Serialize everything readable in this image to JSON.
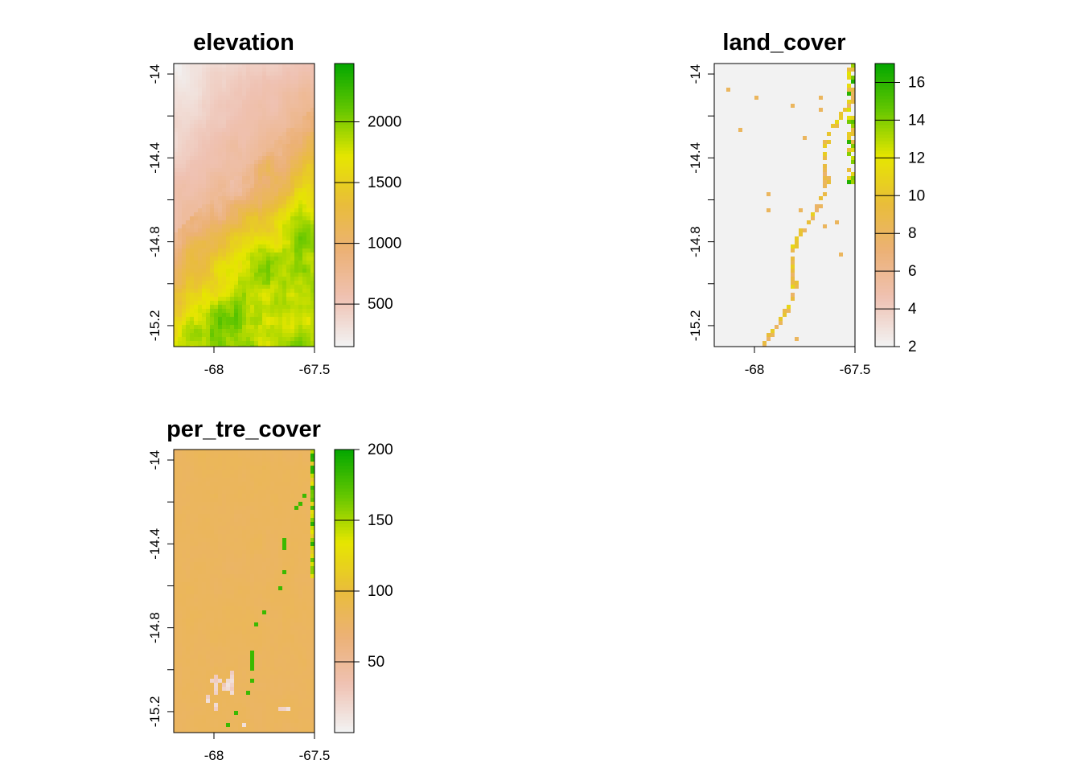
{
  "colors": {
    "terrain_ramp": [
      "#F2F2F2",
      "#EFC2B3",
      "#ECB176",
      "#E9BD3A",
      "#E6E600",
      "#63C600",
      "#00A600"
    ]
  },
  "chart_data": [
    {
      "type": "heatmap",
      "title": "elevation",
      "xlabel": "",
      "ylabel": "",
      "x_ticks": [
        "-68",
        "-67.5"
      ],
      "y_ticks": [
        "-14",
        "-14.4",
        "-14.8",
        "-15.2"
      ],
      "xlim": [
        -68.2,
        -67.5
      ],
      "ylim": [
        -15.3,
        -13.95
      ],
      "legend": {
        "position": "right",
        "range": [
          150,
          2480
        ],
        "ticks": [
          "500",
          "1000",
          "1500",
          "2000"
        ],
        "tick_values": [
          500,
          1000,
          1500,
          2000
        ]
      },
      "pattern": "elevation",
      "grid": false
    },
    {
      "type": "heatmap",
      "title": "land_cover",
      "xlabel": "",
      "ylabel": "",
      "x_ticks": [
        "-68",
        "-67.5"
      ],
      "y_ticks": [
        "-14",
        "-14.4",
        "-14.8",
        "-15.2"
      ],
      "xlim": [
        -68.2,
        -67.5
      ],
      "ylim": [
        -15.3,
        -13.95
      ],
      "legend": {
        "position": "right",
        "range": [
          2,
          17
        ],
        "ticks": [
          "2",
          "4",
          "6",
          "8",
          "10",
          "12",
          "14",
          "16"
        ],
        "tick_values": [
          2,
          4,
          6,
          8,
          10,
          12,
          14,
          16
        ]
      },
      "pattern": "land_cover",
      "grid": false
    },
    {
      "type": "heatmap",
      "title": "per_tre_cover",
      "xlabel": "",
      "ylabel": "",
      "x_ticks": [
        "-68",
        "-67.5"
      ],
      "y_ticks": [
        "-14",
        "-14.4",
        "-14.8",
        "-15.2"
      ],
      "xlim": [
        -68.2,
        -67.5
      ],
      "ylim": [
        -15.3,
        -13.95
      ],
      "legend": {
        "position": "right",
        "range": [
          0,
          200
        ],
        "ticks": [
          "50",
          "100",
          "150",
          "200"
        ],
        "tick_values": [
          50,
          100,
          150,
          200
        ]
      },
      "pattern": "tree_cover",
      "grid": false
    }
  ]
}
